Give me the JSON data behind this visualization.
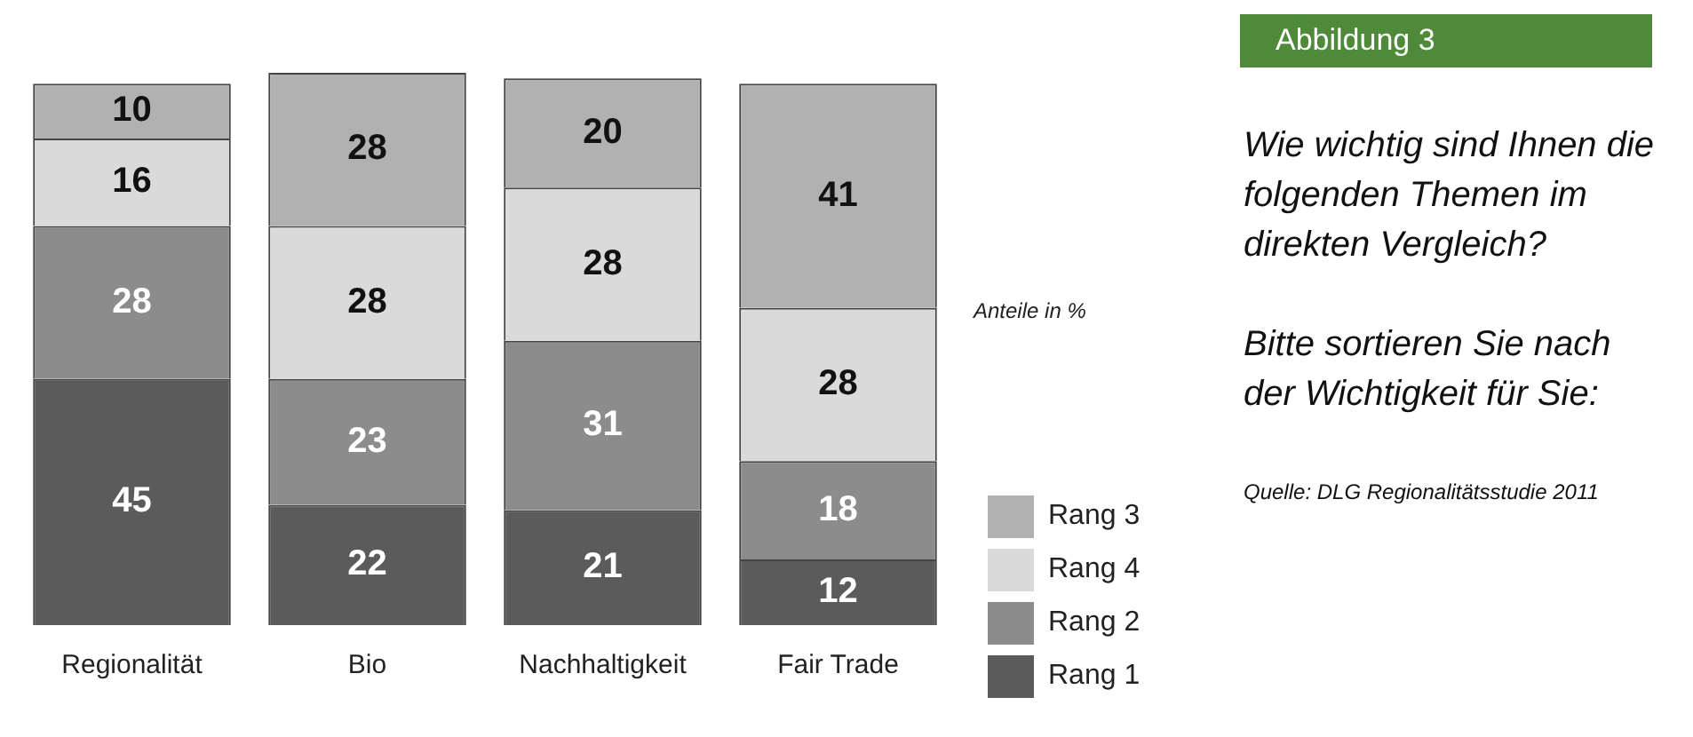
{
  "chart_data": {
    "type": "bar",
    "title": "Wie wichtig sind Ihnen die folgenden Themen im direkten Vergleich?",
    "subtitle": "Bitte sortieren Sie nach der Wichtigkeit für Sie:",
    "annotations": [
      "Abbildung 3",
      "Anteile in %",
      "Quelle: DLG Regionalitätsstudie 2011"
    ],
    "categories": [
      "Regionalität",
      "Bio",
      "Nachhaltigkeit",
      "Fair Trade"
    ],
    "stacked": true,
    "data_labels": true,
    "legend": "right",
    "tick_labels": "x",
    "grid": false,
    "series": [
      {
        "name": "Rang 1",
        "color": "#5a5b5a",
        "values": [
          45,
          22,
          21,
          12
        ]
      },
      {
        "name": "Rang 2",
        "color": "#8b8c8b",
        "values": [
          28,
          23,
          31,
          18
        ]
      },
      {
        "name": "Rang 4",
        "color": "#d9dad9",
        "values": [
          16,
          28,
          28,
          28
        ]
      },
      {
        "name": "Rang 3",
        "color": "#b1b1b1",
        "values": [
          10,
          28,
          20,
          41
        ]
      }
    ]
  }
}
